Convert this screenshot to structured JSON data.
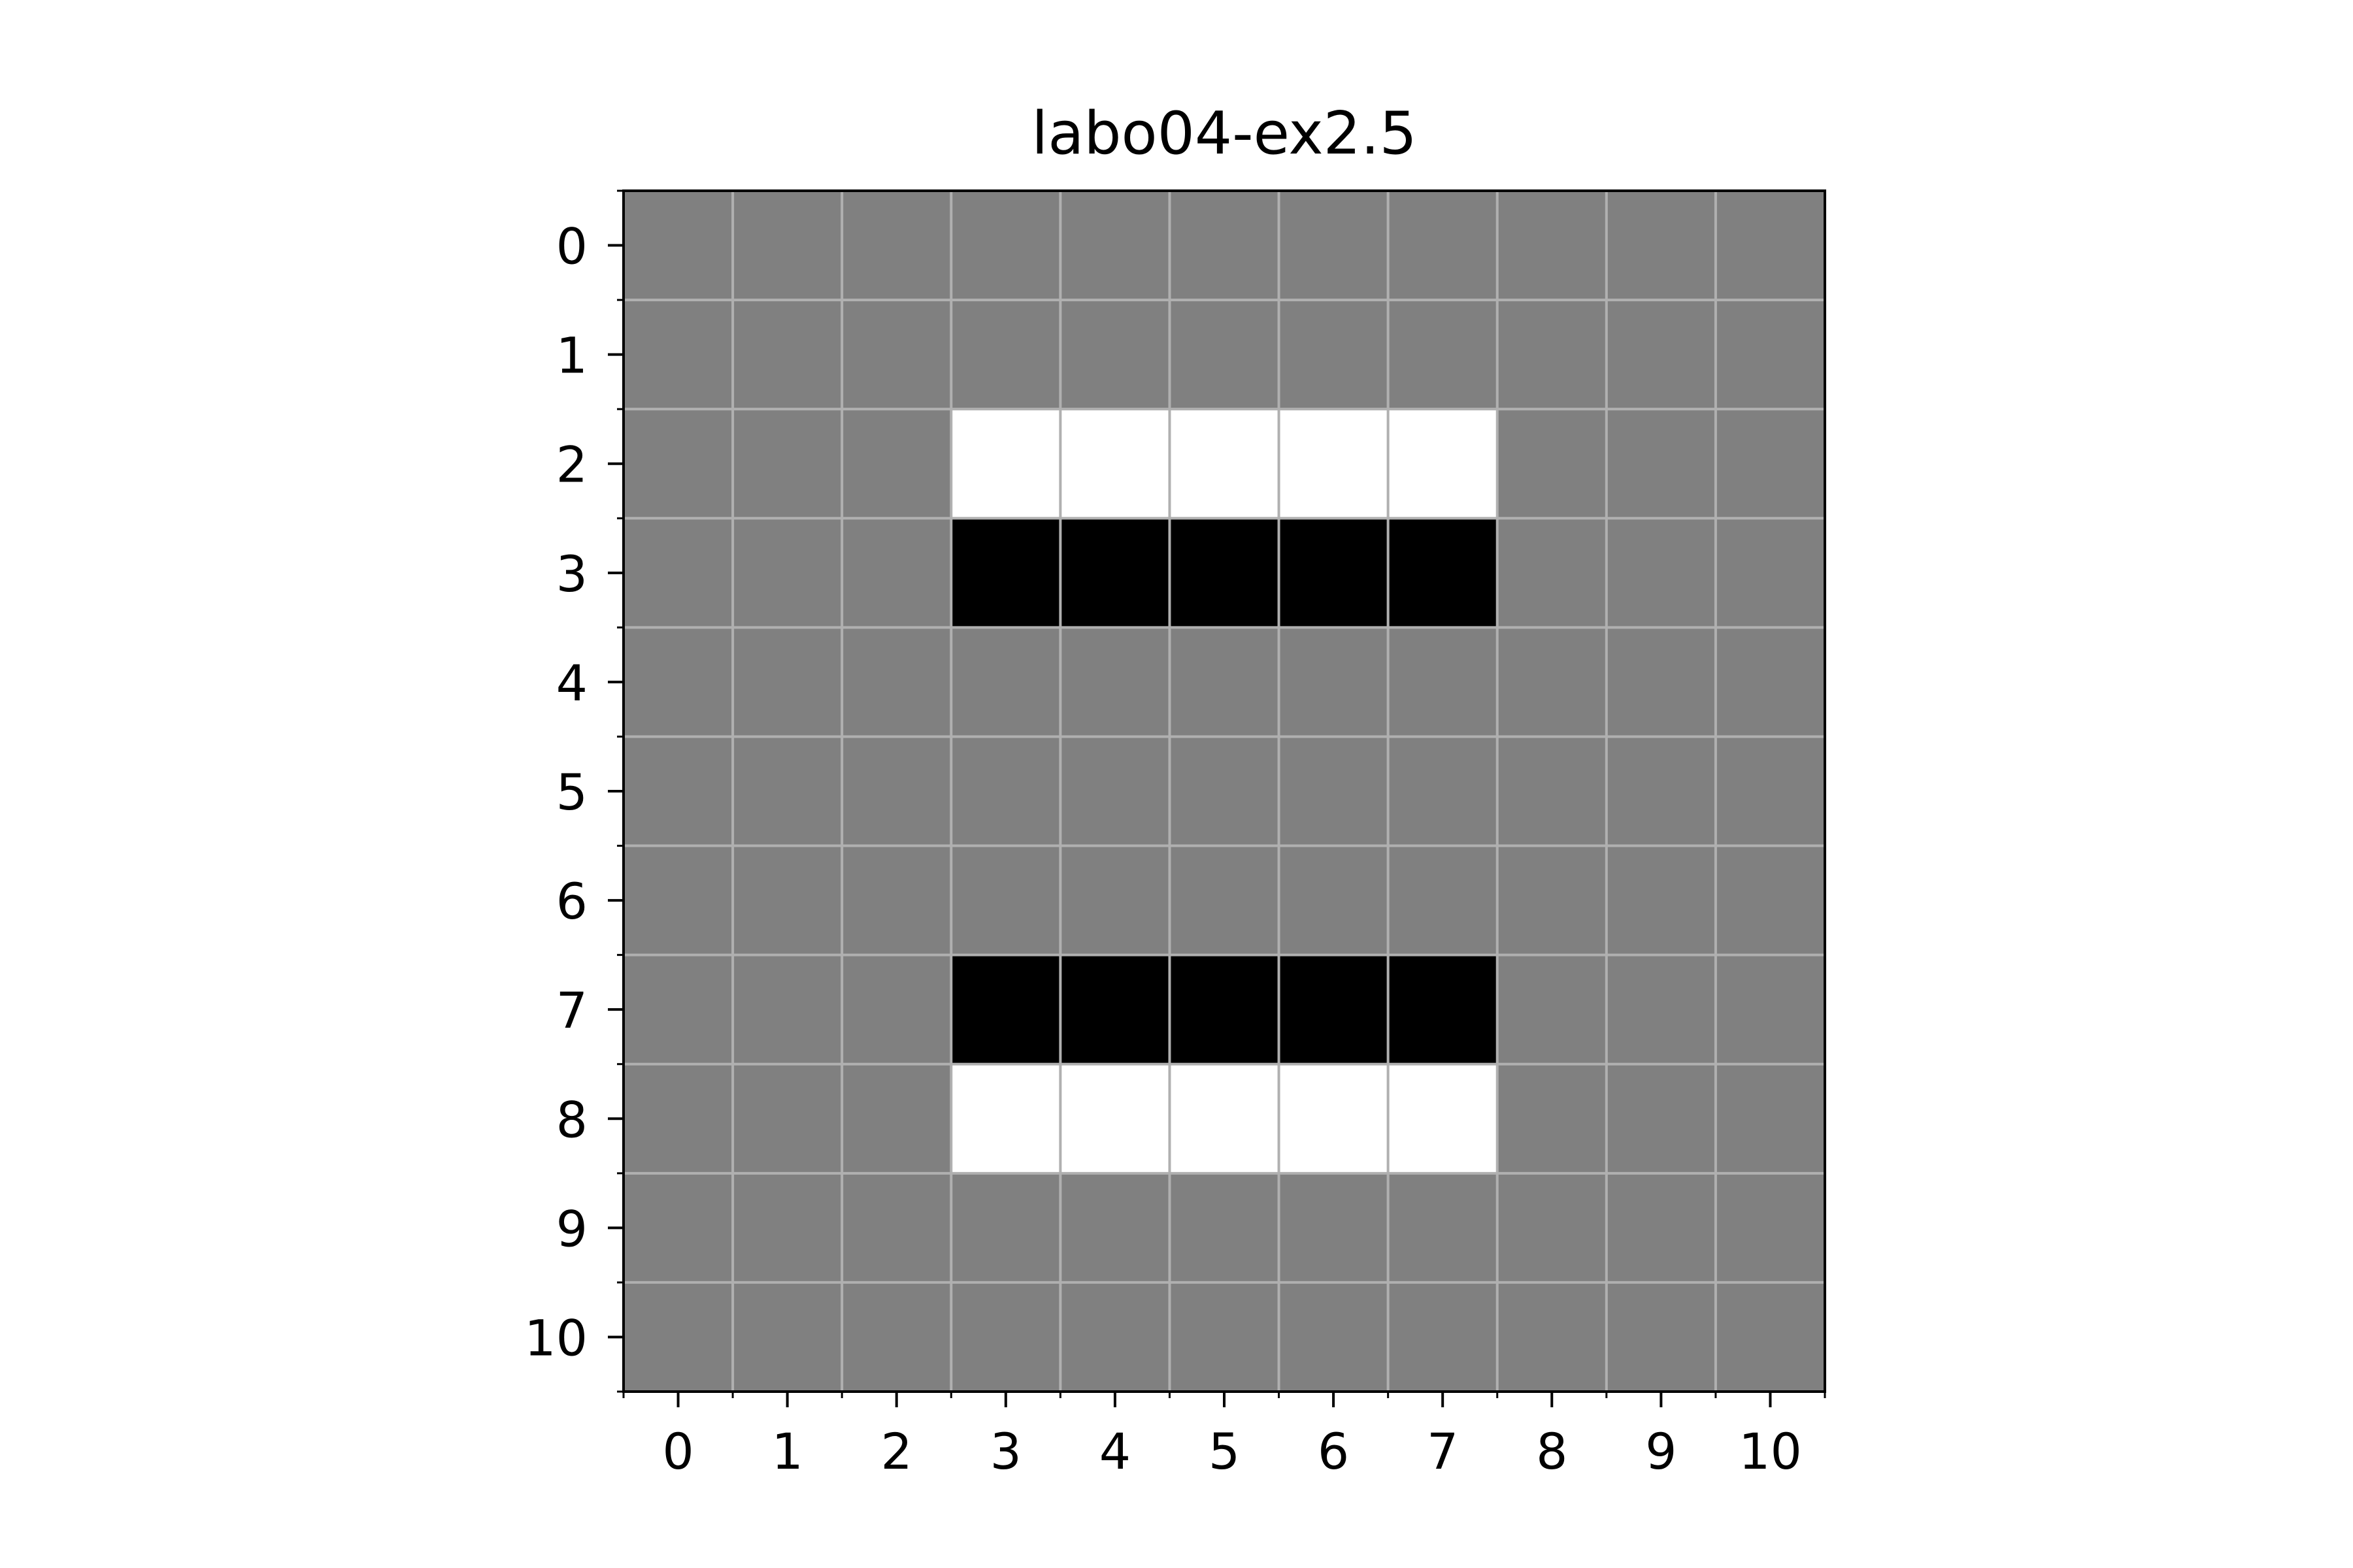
{
  "chart_data": {
    "type": "heatmap",
    "title": "labo04-ex2.5",
    "xlabel": "",
    "ylabel": "",
    "x_ticks": [
      "0",
      "1",
      "2",
      "3",
      "4",
      "5",
      "6",
      "7",
      "8",
      "9",
      "10"
    ],
    "y_ticks": [
      "0",
      "1",
      "2",
      "3",
      "4",
      "5",
      "6",
      "7",
      "8",
      "9",
      "10"
    ],
    "xlim": [
      -0.5,
      10.5
    ],
    "ylim": [
      10.5,
      -0.5
    ],
    "colormap": "gray",
    "value_range": [
      -1,
      1
    ],
    "grid": true,
    "grid_color": "#b0b0b0",
    "values": [
      [
        0,
        0,
        0,
        0,
        0,
        0,
        0,
        0,
        0,
        0,
        0
      ],
      [
        0,
        0,
        0,
        0,
        0,
        0,
        0,
        0,
        0,
        0,
        0
      ],
      [
        0,
        0,
        0,
        1,
        1,
        1,
        1,
        1,
        0,
        0,
        0
      ],
      [
        0,
        0,
        0,
        -1,
        -1,
        -1,
        -1,
        -1,
        0,
        0,
        0
      ],
      [
        0,
        0,
        0,
        0,
        0,
        0,
        0,
        0,
        0,
        0,
        0
      ],
      [
        0,
        0,
        0,
        0,
        0,
        0,
        0,
        0,
        0,
        0,
        0
      ],
      [
        0,
        0,
        0,
        0,
        0,
        0,
        0,
        0,
        0,
        0,
        0
      ],
      [
        0,
        0,
        0,
        -1,
        -1,
        -1,
        -1,
        -1,
        0,
        0,
        0
      ],
      [
        0,
        0,
        0,
        1,
        1,
        1,
        1,
        1,
        0,
        0,
        0
      ],
      [
        0,
        0,
        0,
        0,
        0,
        0,
        0,
        0,
        0,
        0,
        0
      ],
      [
        0,
        0,
        0,
        0,
        0,
        0,
        0,
        0,
        0,
        0,
        0
      ]
    ]
  }
}
